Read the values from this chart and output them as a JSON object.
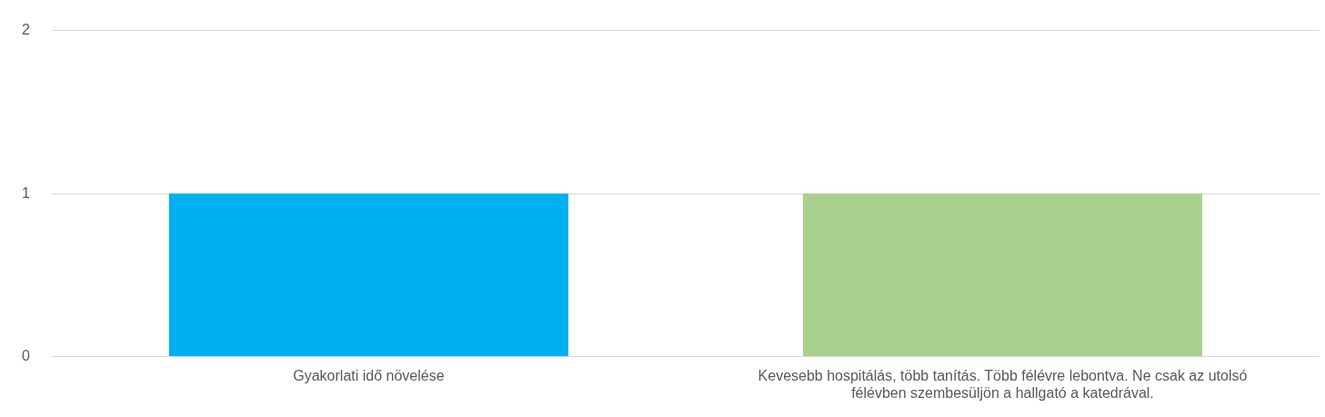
{
  "chart_data": {
    "type": "bar",
    "categories": [
      "Gyakorlati idő növelése",
      "Kevesebb hospitálás, több tanítás. Több félévre lebontva. Ne csak az utolsó félévben szembesüljön a hallgató a katedrával."
    ],
    "values": [
      1,
      1
    ],
    "colors": [
      "#00b0f0",
      "#a9d18e"
    ],
    "ylim": [
      0,
      2
    ],
    "yticks": [
      0,
      1,
      2
    ],
    "grid": "y"
  }
}
